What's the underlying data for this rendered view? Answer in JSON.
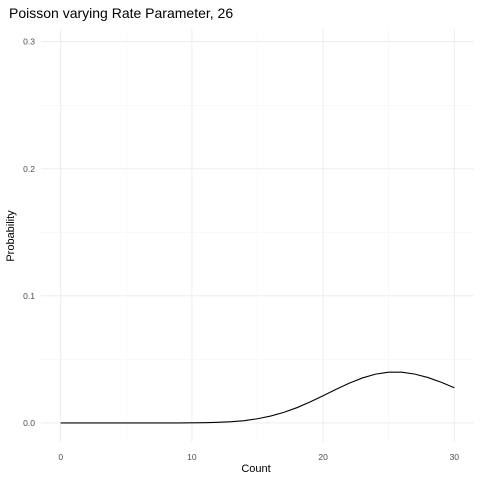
{
  "chart_data": {
    "type": "line",
    "title": "Poisson varying Rate Parameter, 26",
    "xlabel": "Count",
    "ylabel": "Probability",
    "xlim": [
      -1.5,
      31.5
    ],
    "ylim": [
      -0.015,
      0.31
    ],
    "x_ticks": [
      0,
      10,
      20,
      30
    ],
    "x_tick_labels": [
      "0",
      "10",
      "20",
      "30"
    ],
    "x_minor_ticks": [
      5,
      15,
      25
    ],
    "y_ticks": [
      0.0,
      0.1,
      0.2,
      0.3
    ],
    "y_tick_labels": [
      "0.0",
      "0.1",
      "0.2",
      "0.3"
    ],
    "y_minor_ticks": [
      0.05,
      0.15,
      0.25
    ],
    "grid": true,
    "x": [
      0,
      1,
      2,
      3,
      4,
      5,
      6,
      7,
      8,
      9,
      10,
      11,
      12,
      13,
      14,
      15,
      16,
      17,
      18,
      19,
      20,
      21,
      22,
      23,
      24,
      25,
      26,
      27,
      28,
      29,
      30
    ],
    "y": [
      0.0,
      0.0,
      0.0,
      0.0,
      0.0,
      0.0,
      0.0,
      0.0,
      0.0,
      0.0,
      0.0001,
      0.0002,
      0.0005,
      0.001,
      0.0018,
      0.0033,
      0.0054,
      0.0083,
      0.012,
      0.0165,
      0.0214,
      0.0265,
      0.0313,
      0.0354,
      0.0384,
      0.0399,
      0.0399,
      0.0384,
      0.0357,
      0.032,
      0.0277
    ]
  }
}
